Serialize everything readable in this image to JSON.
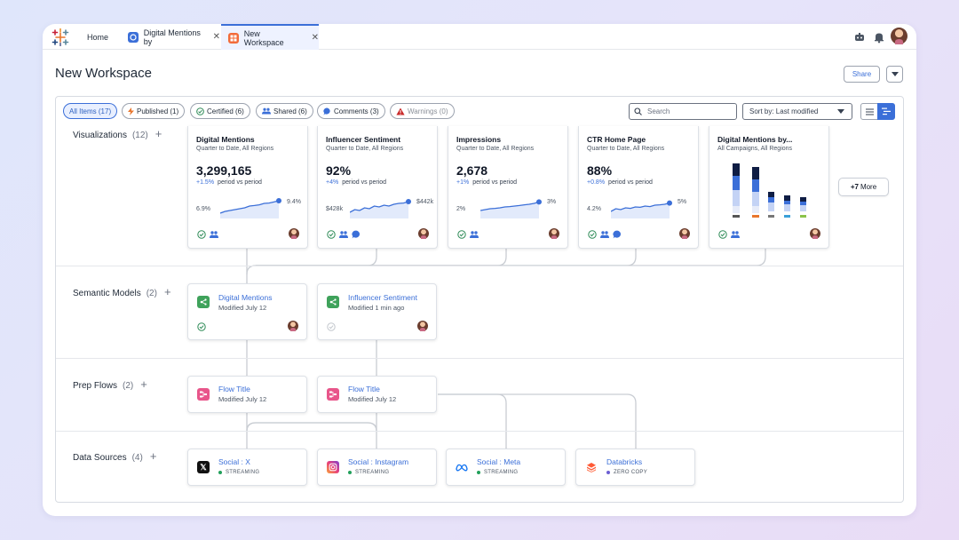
{
  "tabs": [
    {
      "label": "Home",
      "active": false
    },
    {
      "label": "Digital Mentions by",
      "active": false,
      "icon": "gauge-icon",
      "color": "#3b6fd8"
    },
    {
      "label": "New Workspace",
      "active": true,
      "icon": "workspace-icon",
      "color": "#f26b3a"
    }
  ],
  "page": {
    "title": "New Workspace",
    "share_label": "Share"
  },
  "filters": [
    {
      "label": "All Items (17)",
      "active": true,
      "icon": ""
    },
    {
      "label": "Published (1)",
      "active": false,
      "icon": "bolt-icon"
    },
    {
      "label": "Certified (6)",
      "active": false,
      "icon": "check-circle-icon"
    },
    {
      "label": "Shared (6)",
      "active": false,
      "icon": "people-icon"
    },
    {
      "label": "Comments (3)",
      "active": false,
      "icon": "comment-icon"
    },
    {
      "label": "Warnings (0)",
      "active": false,
      "icon": "warning-icon"
    }
  ],
  "search": {
    "placeholder": "Search"
  },
  "sort": {
    "label": "Sort by: Last modified"
  },
  "rows": {
    "visualizations": {
      "label": "Visualizations",
      "count": "(12)"
    },
    "semantic_models": {
      "label": "Semantic Models",
      "count": "(2)"
    },
    "prep_flows": {
      "label": "Prep Flows",
      "count": "(2)"
    },
    "data_sources": {
      "label": "Data Sources",
      "count": "(4)"
    }
  },
  "viz_cards": [
    {
      "title": "Digital Mentions",
      "subtitle": "Quarter to Date, All Regions",
      "value": "3,299,165",
      "delta": "+1.5%",
      "delta_label": "period vs period",
      "low": "6.9%",
      "high": "9.4%",
      "trend": [
        0.15,
        0.25,
        0.3,
        0.35,
        0.4,
        0.45,
        0.55,
        0.58,
        0.62,
        0.7,
        0.72,
        0.78,
        0.85
      ],
      "badges": [
        "certified",
        "shared"
      ]
    },
    {
      "title": "Influencer Sentiment",
      "subtitle": "Quarter to Date, All Regions",
      "value": "92%",
      "delta": "+4%",
      "delta_label": "period vs period",
      "low": "$428k",
      "high": "$442k",
      "trend": [
        0.2,
        0.35,
        0.3,
        0.45,
        0.4,
        0.55,
        0.5,
        0.6,
        0.55,
        0.65,
        0.7,
        0.72,
        0.8
      ],
      "badges": [
        "certified",
        "shared",
        "comments"
      ]
    },
    {
      "title": "Impressions",
      "subtitle": "Quarter to Date, All Regions",
      "value": "2,678",
      "delta": "+1%",
      "delta_label": "period vs period",
      "low": "2%",
      "high": "3%",
      "trend": [
        0.3,
        0.35,
        0.4,
        0.42,
        0.45,
        0.5,
        0.52,
        0.55,
        0.58,
        0.62,
        0.65,
        0.7,
        0.78
      ],
      "badges": [
        "certified",
        "shared"
      ]
    },
    {
      "title": "CTR Home Page",
      "subtitle": "Quarter to Date, All Regions",
      "value": "88%",
      "delta": "+0.8%",
      "delta_label": "period vs period",
      "low": "4.2%",
      "high": "5%",
      "trend": [
        0.25,
        0.4,
        0.35,
        0.45,
        0.42,
        0.5,
        0.48,
        0.55,
        0.52,
        0.6,
        0.62,
        0.65,
        0.72
      ],
      "badges": [
        "certified",
        "shared",
        "comments"
      ]
    }
  ],
  "campaign_card": {
    "title": "Digital Mentions by...",
    "subtitle": "All Campaigns, All Regions",
    "badges": [
      "certified",
      "shared"
    ]
  },
  "more": {
    "label": "+7",
    "suffix": "More"
  },
  "semantic_models": [
    {
      "title": "Digital Mentions",
      "subtitle": "Modified July 12",
      "certified": true
    },
    {
      "title": "Influencer Sentiment",
      "subtitle": "Modified 1 min ago",
      "certified": false
    }
  ],
  "prep_flows": [
    {
      "title": "Flow Title",
      "subtitle": "Modified July 12"
    },
    {
      "title": "Flow Title",
      "subtitle": "Modified July 12"
    }
  ],
  "data_sources": [
    {
      "title": "Social : X",
      "status": "STREAMING",
      "icon": "x-logo-icon",
      "dot": "#22a05b"
    },
    {
      "title": "Social : Instagram",
      "status": "STREAMING",
      "icon": "instagram-logo-icon",
      "dot": "#22a05b"
    },
    {
      "title": "Social : Meta",
      "status": "STREAMING",
      "icon": "meta-logo-icon",
      "dot": "#22a05b"
    },
    {
      "title": "Databricks",
      "status": "ZERO COPY",
      "icon": "databricks-logo-icon",
      "dot": "#6b5fd3"
    }
  ],
  "colors": {
    "accent": "#3b6fd8",
    "model_green": "#3fa25b",
    "flow_pink": "#e8558a"
  }
}
